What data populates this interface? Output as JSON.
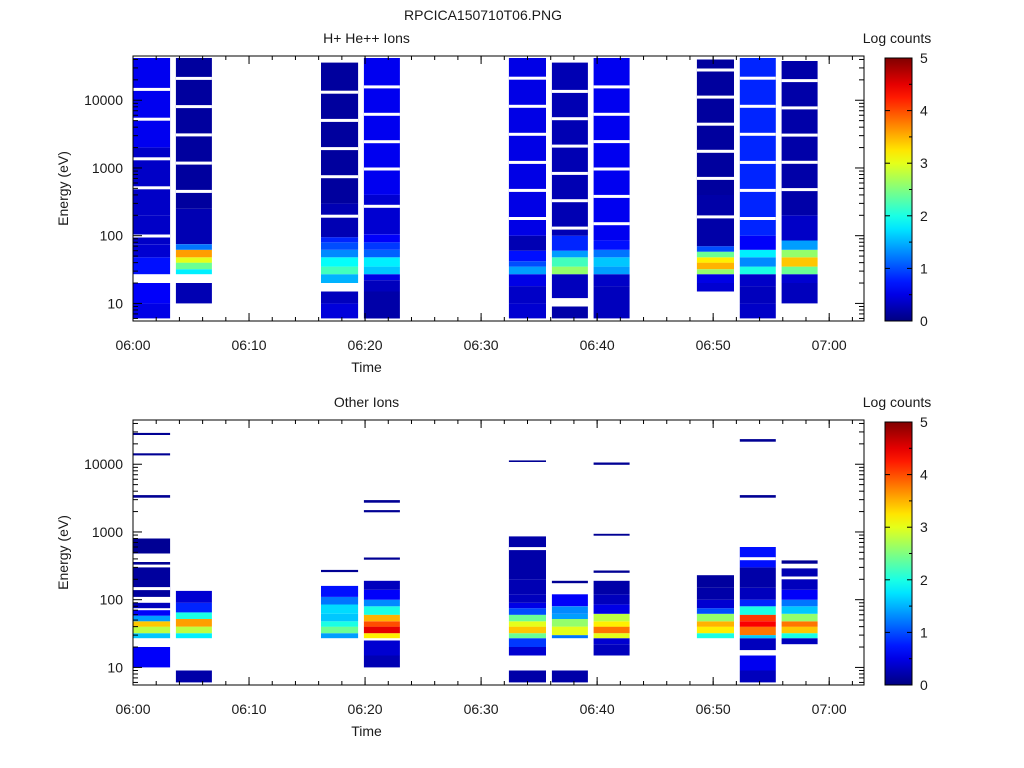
{
  "page": {
    "title": "RPCICA150710T06.PNG"
  },
  "chart_data": [
    {
      "type": "heatmap",
      "title": "H+ He++ Ions",
      "xlabel": "Time",
      "ylabel": "Energy (eV)",
      "x_range": [
        "06:00",
        "07:03"
      ],
      "y_range": [
        5.5,
        45000
      ],
      "y_scale": "log",
      "x_ticks": [
        "06:00",
        "06:10",
        "06:20",
        "06:30",
        "06:40",
        "06:50",
        "07:00"
      ],
      "y_ticks": [
        "10",
        "100",
        "1000",
        "10000"
      ],
      "colorbar": {
        "label": "Log counts",
        "min": 0,
        "max": 5,
        "ticks": [
          "0",
          "1",
          "2",
          "3",
          "4",
          "5"
        ]
      },
      "columns": [
        {
          "t_start": "06:00.0",
          "t_end": "06:03.2",
          "segments": [
            [
              6,
              10,
              0.5
            ],
            [
              10,
              20,
              0.6
            ],
            [
              27,
              48,
              0.7
            ],
            [
              48,
              75,
              0.4
            ],
            [
              75,
              200,
              0.35
            ],
            [
              200,
              2000,
              0.35
            ],
            [
              2000,
              42000,
              0.55
            ]
          ]
        },
        {
          "t_start": "06:03.7",
          "t_end": "06:06.8",
          "segments": [
            [
              10,
              20,
              0.25
            ],
            [
              27,
              32,
              1.8
            ],
            [
              32,
              40,
              2.4
            ],
            [
              40,
              48,
              3.0
            ],
            [
              48,
              62,
              3.6
            ],
            [
              62,
              75,
              1.2
            ],
            [
              75,
              250,
              0.25
            ],
            [
              250,
              42000,
              0.15
            ]
          ]
        },
        {
          "t_start": "06:16.2",
          "t_end": "06:19.4",
          "segments": [
            [
              6,
              10,
              0.45
            ],
            [
              10,
              15,
              0.3
            ],
            [
              20,
              27,
              1.5
            ],
            [
              27,
              35,
              2.2
            ],
            [
              35,
              48,
              1.9
            ],
            [
              48,
              62,
              1.3
            ],
            [
              62,
              80,
              1.0
            ],
            [
              80,
              95,
              0.8
            ],
            [
              95,
              300,
              0.25
            ],
            [
              300,
              36000,
              0.15
            ]
          ]
        },
        {
          "t_start": "06:19.9",
          "t_end": "06:23.0",
          "segments": [
            [
              6,
              15,
              0.2
            ],
            [
              15,
              22,
              0.3
            ],
            [
              22,
              27,
              0.5
            ],
            [
              27,
              35,
              1.6
            ],
            [
              35,
              48,
              1.8
            ],
            [
              48,
              62,
              1.1
            ],
            [
              62,
              80,
              0.9
            ],
            [
              80,
              105,
              0.6
            ],
            [
              105,
              400,
              0.4
            ],
            [
              400,
              42000,
              0.55
            ]
          ]
        },
        {
          "t_start": "06:32.4",
          "t_end": "06:35.6",
          "segments": [
            [
              6,
              10,
              0.4
            ],
            [
              10,
              18,
              0.35
            ],
            [
              18,
              27,
              0.5
            ],
            [
              27,
              35,
              1.4
            ],
            [
              35,
              42,
              1.0
            ],
            [
              42,
              60,
              0.7
            ],
            [
              60,
              100,
              0.25
            ],
            [
              100,
              42000,
              0.5
            ]
          ]
        },
        {
          "t_start": "06:36.1",
          "t_end": "06:39.2",
          "segments": [
            [
              6,
              9,
              0.2
            ],
            [
              12,
              27,
              0.3
            ],
            [
              27,
              35,
              2.6
            ],
            [
              35,
              48,
              2.2
            ],
            [
              48,
              60,
              1.4
            ],
            [
              60,
              100,
              0.8
            ],
            [
              100,
              36000,
              0.25
            ]
          ]
        },
        {
          "t_start": "06:39.7",
          "t_end": "06:42.8",
          "segments": [
            [
              6,
              18,
              0.3
            ],
            [
              18,
              27,
              0.35
            ],
            [
              27,
              35,
              1.4
            ],
            [
              35,
              48,
              1.6
            ],
            [
              48,
              62,
              1.2
            ],
            [
              62,
              85,
              0.7
            ],
            [
              85,
              42000,
              0.55
            ]
          ]
        },
        {
          "t_start": "06:48.6",
          "t_end": "06:51.8",
          "segments": [
            [
              15,
              20,
              0.4
            ],
            [
              20,
              27,
              0.5
            ],
            [
              27,
              32,
              2.6
            ],
            [
              32,
              40,
              3.5
            ],
            [
              40,
              48,
              3.2
            ],
            [
              48,
              58,
              2.4
            ],
            [
              58,
              70,
              1.0
            ],
            [
              70,
              400,
              0.2
            ],
            [
              400,
              40000,
              0.15
            ]
          ]
        },
        {
          "t_start": "06:52.3",
          "t_end": "06:55.4",
          "segments": [
            [
              6,
              10,
              0.35
            ],
            [
              10,
              18,
              0.3
            ],
            [
              18,
              27,
              0.35
            ],
            [
              27,
              35,
              2.0
            ],
            [
              35,
              48,
              1.3
            ],
            [
              48,
              62,
              1.8
            ],
            [
              62,
              100,
              0.6
            ],
            [
              100,
              42000,
              0.8
            ]
          ]
        },
        {
          "t_start": "06:55.9",
          "t_end": "06:59.0",
          "segments": [
            [
              10,
              20,
              0.3
            ],
            [
              20,
              27,
              0.4
            ],
            [
              27,
              35,
              2.4
            ],
            [
              35,
              48,
              3.4
            ],
            [
              48,
              62,
              2.6
            ],
            [
              62,
              85,
              1.4
            ],
            [
              85,
              200,
              0.35
            ],
            [
              200,
              38000,
              0.2
            ]
          ]
        }
      ]
    },
    {
      "type": "heatmap",
      "title": "Other Ions",
      "xlabel": "Time",
      "ylabel": "Energy (eV)",
      "x_range": [
        "06:00",
        "07:03"
      ],
      "y_range": [
        5.5,
        45000
      ],
      "y_scale": "log",
      "x_ticks": [
        "06:00",
        "06:10",
        "06:20",
        "06:30",
        "06:40",
        "06:50",
        "07:00"
      ],
      "y_ticks": [
        "10",
        "100",
        "1000",
        "10000"
      ],
      "colorbar": {
        "label": "Log counts",
        "min": 0,
        "max": 5,
        "ticks": [
          "0",
          "1",
          "2",
          "3",
          "4",
          "5"
        ]
      },
      "columns": [
        {
          "t_start": "06:00.0",
          "t_end": "06:03.2",
          "segments": [
            [
              10,
              20,
              0.6
            ],
            [
              27,
              32,
              1.6
            ],
            [
              32,
              40,
              2.8
            ],
            [
              40,
              48,
              3.4
            ],
            [
              48,
              58,
              1.4
            ],
            [
              58,
              70,
              0.6
            ],
            [
              75,
              90,
              0.3
            ],
            [
              110,
              300,
              0.15
            ],
            [
              330,
              360,
              0.1
            ],
            [
              480,
              800,
              0.1
            ],
            [
              3200,
              3500,
              0.1
            ],
            [
              13500,
              14500,
              0.1
            ],
            [
              27000,
              29000,
              0.1
            ]
          ]
        },
        {
          "t_start": "06:03.7",
          "t_end": "06:06.8",
          "segments": [
            [
              6,
              9,
              0.2
            ],
            [
              27,
              32,
              1.8
            ],
            [
              32,
              40,
              2.8
            ],
            [
              40,
              52,
              3.6
            ],
            [
              52,
              65,
              2.0
            ],
            [
              65,
              90,
              0.8
            ],
            [
              90,
              135,
              0.4
            ]
          ]
        },
        {
          "t_start": "06:16.2",
          "t_end": "06:19.4",
          "segments": [
            [
              27,
              32,
              1.4
            ],
            [
              32,
              40,
              2.4
            ],
            [
              40,
              48,
              2.0
            ],
            [
              48,
              62,
              1.6
            ],
            [
              62,
              85,
              1.7
            ],
            [
              85,
              110,
              1.2
            ],
            [
              110,
              160,
              0.7
            ],
            [
              255,
              275,
              0.1
            ]
          ]
        },
        {
          "t_start": "06:19.9",
          "t_end": "06:23.0",
          "segments": [
            [
              10,
              15,
              0.25
            ],
            [
              15,
              25,
              0.4
            ],
            [
              27,
              32,
              3.2
            ],
            [
              32,
              40,
              4.5
            ],
            [
              40,
              48,
              4.0
            ],
            [
              48,
              60,
              3.5
            ],
            [
              60,
              80,
              2.0
            ],
            [
              80,
              100,
              1.3
            ],
            [
              100,
              140,
              0.6
            ],
            [
              140,
              190,
              0.3
            ],
            [
              390,
              420,
              0.1
            ],
            [
              1950,
              2100,
              0.1
            ],
            [
              2700,
              2950,
              0.1
            ]
          ]
        },
        {
          "t_start": "06:32.4",
          "t_end": "06:35.6",
          "segments": [
            [
              6,
              9,
              0.2
            ],
            [
              15,
              20,
              0.4
            ],
            [
              20,
              27,
              0.9
            ],
            [
              27,
              32,
              2.4
            ],
            [
              32,
              40,
              3.4
            ],
            [
              40,
              48,
              3.0
            ],
            [
              48,
              60,
              2.4
            ],
            [
              60,
              75,
              1.0
            ],
            [
              75,
              90,
              0.5
            ],
            [
              90,
              120,
              0.3
            ],
            [
              120,
              200,
              0.25
            ],
            [
              200,
              860,
              0.2
            ],
            [
              10800,
              11400,
              0.1
            ]
          ]
        },
        {
          "t_start": "06:36.1",
          "t_end": "06:39.2",
          "segments": [
            [
              6,
              9,
              0.2
            ],
            [
              27,
              30,
              1.2
            ],
            [
              30,
              40,
              3.0
            ],
            [
              40,
              52,
              2.6
            ],
            [
              52,
              62,
              1.4
            ],
            [
              62,
              80,
              1.3
            ],
            [
              80,
              120,
              0.6
            ],
            [
              175,
              190,
              0.1
            ]
          ]
        },
        {
          "t_start": "06:39.7",
          "t_end": "06:42.8",
          "segments": [
            [
              15,
              22,
              0.3
            ],
            [
              22,
              27,
              0.4
            ],
            [
              27,
              32,
              3.0
            ],
            [
              32,
              40,
              3.8
            ],
            [
              40,
              48,
              3.2
            ],
            [
              48,
              62,
              2.8
            ],
            [
              62,
              85,
              0.5
            ],
            [
              85,
              120,
              0.3
            ],
            [
              120,
              190,
              0.2
            ],
            [
              250,
              270,
              0.1
            ],
            [
              880,
              940,
              0.1
            ],
            [
              9800,
              10600,
              0.1
            ]
          ]
        },
        {
          "t_start": "06:48.6",
          "t_end": "06:51.8",
          "segments": [
            [
              27,
              32,
              2.0
            ],
            [
              32,
              40,
              3.2
            ],
            [
              40,
              48,
              3.5
            ],
            [
              48,
              62,
              2.6
            ],
            [
              62,
              75,
              1.0
            ],
            [
              75,
              100,
              0.4
            ],
            [
              100,
              150,
              0.2
            ],
            [
              150,
              230,
              0.15
            ]
          ]
        },
        {
          "t_start": "06:52.3",
          "t_end": "06:55.4",
          "segments": [
            [
              6,
              9,
              0.3
            ],
            [
              9,
              15,
              0.55
            ],
            [
              18,
              27,
              0.3
            ],
            [
              27,
              30,
              1.6
            ],
            [
              30,
              40,
              3.8
            ],
            [
              40,
              48,
              4.4
            ],
            [
              48,
              60,
              4.1
            ],
            [
              60,
              80,
              2.0
            ],
            [
              80,
              100,
              0.8
            ],
            [
              100,
              150,
              0.3
            ],
            [
              150,
              300,
              0.2
            ],
            [
              300,
              600,
              0.7
            ],
            [
              3200,
              3500,
              0.1
            ],
            [
              21500,
              23500,
              0.1
            ]
          ]
        },
        {
          "t_start": "06:55.9",
          "t_end": "06:59.0",
          "segments": [
            [
              22,
              27,
              0.3
            ],
            [
              27,
              32,
              2.0
            ],
            [
              32,
              40,
              3.4
            ],
            [
              40,
              48,
              3.8
            ],
            [
              48,
              62,
              2.6
            ],
            [
              62,
              80,
              1.6
            ],
            [
              80,
              100,
              1.2
            ],
            [
              100,
              140,
              0.6
            ],
            [
              140,
              200,
              0.3
            ],
            [
              220,
              290,
              0.25
            ],
            [
              340,
              380,
              0.1
            ]
          ]
        }
      ]
    }
  ],
  "colors": {
    "background": "#ffffff",
    "axis": "#000000",
    "text": "#1a1a1a"
  }
}
